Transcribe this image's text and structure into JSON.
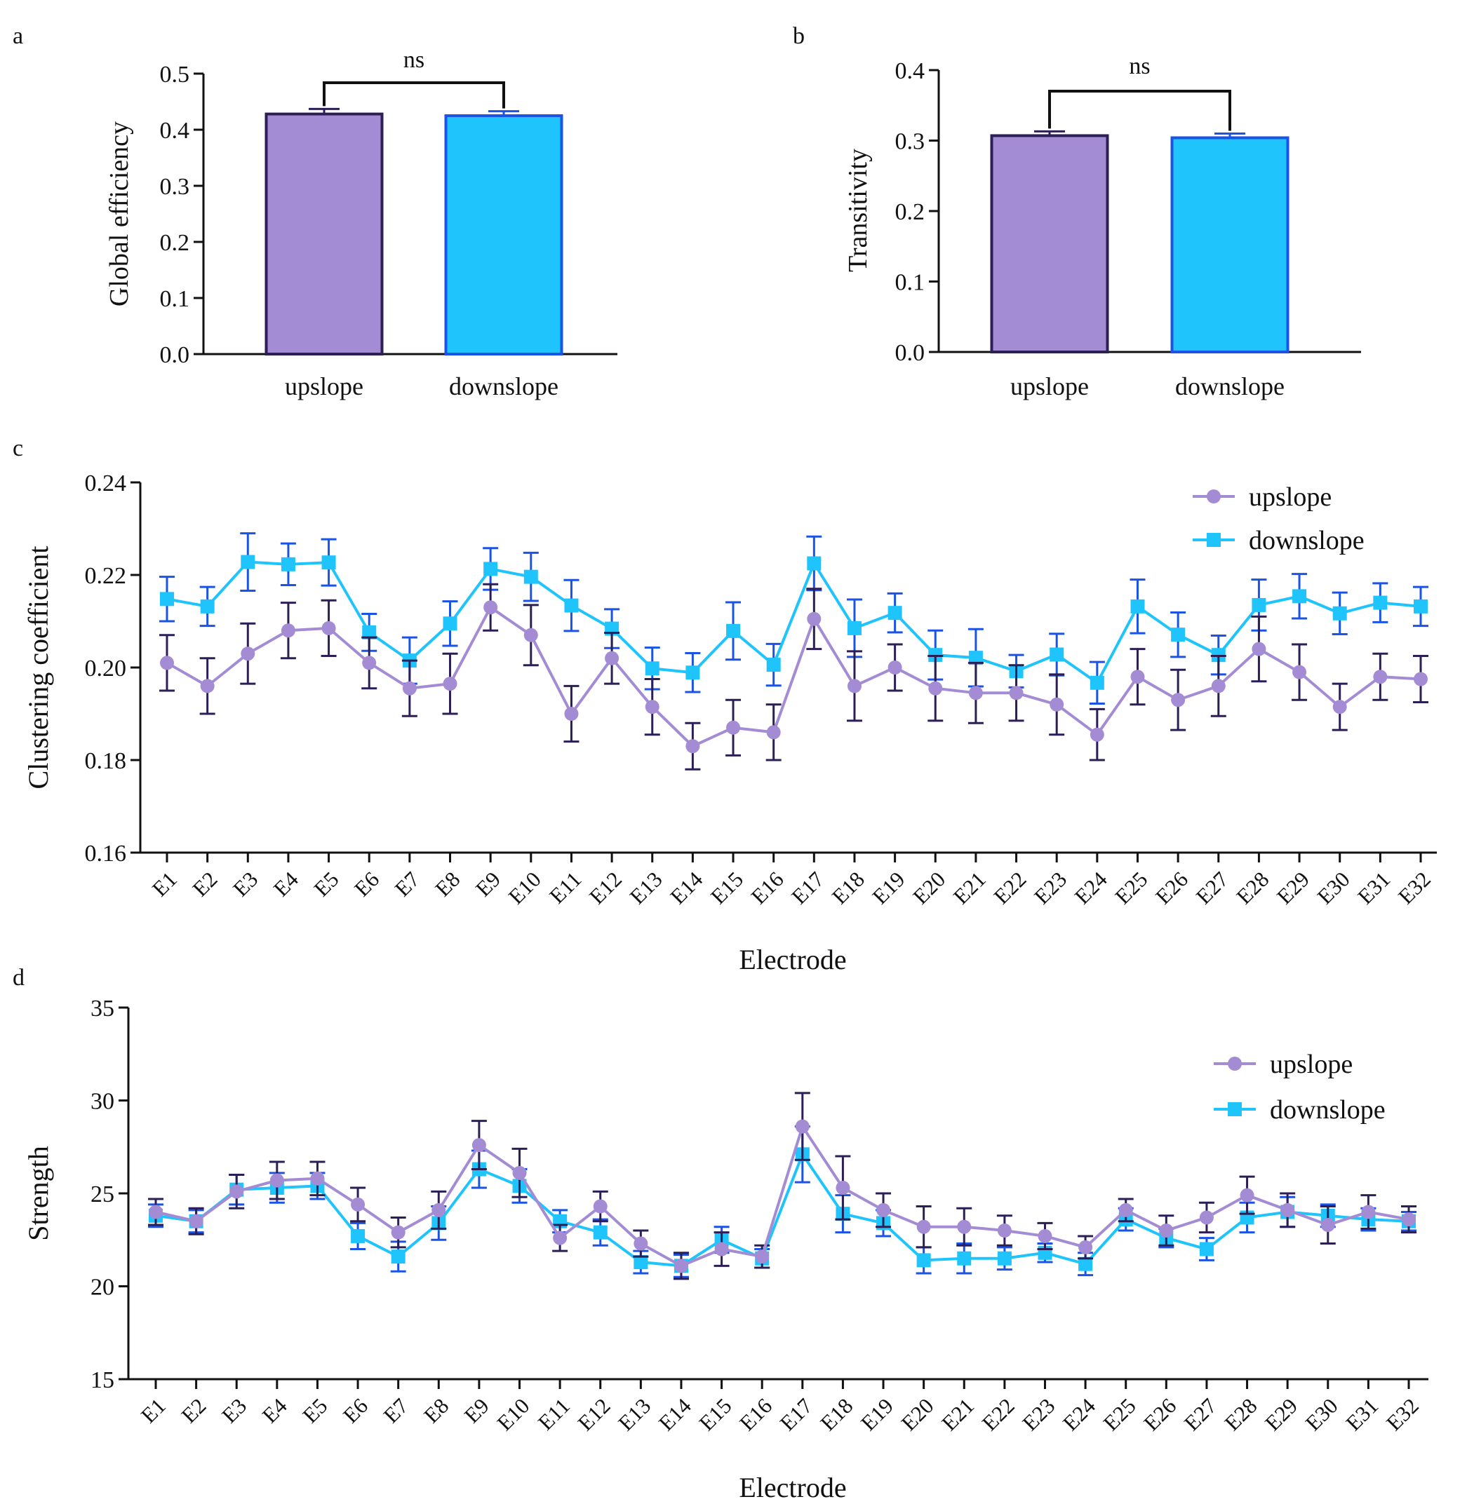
{
  "colors": {
    "upslope_fill": "#a48cd4",
    "upslope_edge": "#2b1f55",
    "downslope_fill": "#1fc4fc",
    "downslope_edge": "#1a53e6",
    "upslope_err": "#2b1f55",
    "downslope_err": "#1a53e6",
    "axis": "#111111"
  },
  "chart_data": [
    {
      "panel": "a",
      "type": "bar",
      "title": "",
      "xlabel": "",
      "ylabel": "Global efficiency",
      "categories": [
        "upslope",
        "downslope"
      ],
      "values": [
        0.428,
        0.425
      ],
      "errors": [
        0.009,
        0.008
      ],
      "ylim": [
        0,
        0.5
      ],
      "yticks": [
        "0.0",
        "0.1",
        "0.2",
        "0.3",
        "0.4",
        "0.5"
      ],
      "annotation": "ns",
      "grid": false
    },
    {
      "panel": "b",
      "type": "bar",
      "title": "",
      "xlabel": "",
      "ylabel": "Transitivity",
      "categories": [
        "upslope",
        "downslope"
      ],
      "values": [
        0.307,
        0.304
      ],
      "errors": [
        0.006,
        0.006
      ],
      "ylim": [
        0,
        0.4
      ],
      "yticks": [
        "0.0",
        "0.1",
        "0.2",
        "0.3",
        "0.4"
      ],
      "annotation": "ns",
      "grid": false
    },
    {
      "panel": "c",
      "type": "line",
      "title": "",
      "xlabel": "Electrode",
      "ylabel": "Clustering coefficient",
      "categories": [
        "E1",
        "E2",
        "E3",
        "E4",
        "E5",
        "E6",
        "E7",
        "E8",
        "E9",
        "E10",
        "E11",
        "E12",
        "E13",
        "E14",
        "E15",
        "E16",
        "E17",
        "E18",
        "E19",
        "E20",
        "E21",
        "E22",
        "E23",
        "E24",
        "E25",
        "E26",
        "E27",
        "E28",
        "E29",
        "E30",
        "E31",
        "E32"
      ],
      "ylim": [
        0.16,
        0.24
      ],
      "yticks": [
        "0.16",
        "0.18",
        "0.20",
        "0.22",
        "0.24"
      ],
      "legend_position": "top-right",
      "grid": false,
      "series": [
        {
          "name": "upslope",
          "marker": "circle",
          "values": [
            0.201,
            0.196,
            0.203,
            0.208,
            0.2085,
            0.201,
            0.1955,
            0.1965,
            0.213,
            0.207,
            0.19,
            0.202,
            0.1915,
            0.183,
            0.187,
            0.186,
            0.2105,
            0.196,
            0.2,
            0.1955,
            0.1945,
            0.1945,
            0.192,
            0.1855,
            0.198,
            0.193,
            0.196,
            0.204,
            0.199,
            0.1915,
            0.198,
            0.1975
          ],
          "errors": [
            0.006,
            0.006,
            0.0065,
            0.006,
            0.006,
            0.0055,
            0.006,
            0.0065,
            0.005,
            0.0065,
            0.006,
            0.0055,
            0.006,
            0.005,
            0.006,
            0.006,
            0.0065,
            0.0075,
            0.005,
            0.007,
            0.0065,
            0.006,
            0.0065,
            0.0055,
            0.006,
            0.0065,
            0.0065,
            0.007,
            0.006,
            0.005,
            0.005,
            0.005
          ]
        },
        {
          "name": "downslope",
          "marker": "square",
          "values": [
            0.2148,
            0.2132,
            0.2228,
            0.2223,
            0.2227,
            0.2076,
            0.2015,
            0.2095,
            0.2213,
            0.2196,
            0.2134,
            0.2084,
            0.1998,
            0.1989,
            0.2079,
            0.2006,
            0.2225,
            0.2085,
            0.2118,
            0.2027,
            0.2021,
            0.1992,
            0.2028,
            0.1967,
            0.2132,
            0.2071,
            0.2027,
            0.2135,
            0.2154,
            0.2117,
            0.214,
            0.2132
          ],
          "errors": [
            0.0048,
            0.0042,
            0.0062,
            0.0045,
            0.005,
            0.004,
            0.005,
            0.0048,
            0.0045,
            0.0052,
            0.0055,
            0.0042,
            0.0045,
            0.0042,
            0.0062,
            0.0045,
            0.0058,
            0.0062,
            0.0042,
            0.0053,
            0.0062,
            0.0035,
            0.0045,
            0.0045,
            0.0058,
            0.0048,
            0.0042,
            0.0055,
            0.0048,
            0.0045,
            0.0042,
            0.0042
          ]
        }
      ]
    },
    {
      "panel": "d",
      "type": "line",
      "title": "",
      "xlabel": "Electrode",
      "ylabel": "Strength",
      "categories": [
        "E1",
        "E2",
        "E3",
        "E4",
        "E5",
        "E6",
        "E7",
        "E8",
        "E9",
        "E10",
        "E11",
        "E12",
        "E13",
        "E14",
        "E15",
        "E16",
        "E17",
        "E18",
        "E19",
        "E20",
        "E21",
        "E22",
        "E23",
        "E24",
        "E25",
        "E26",
        "E27",
        "E28",
        "E29",
        "E30",
        "E31",
        "E32"
      ],
      "ylim": [
        15,
        35
      ],
      "yticks": [
        "15",
        "20",
        "25",
        "30",
        "35"
      ],
      "legend_position": "top-right",
      "grid": false,
      "series": [
        {
          "name": "upslope",
          "marker": "circle",
          "values": [
            24.0,
            23.5,
            25.1,
            25.7,
            25.8,
            24.4,
            22.9,
            24.1,
            27.6,
            26.1,
            22.6,
            24.3,
            22.3,
            21.1,
            22.0,
            21.6,
            28.6,
            25.3,
            24.1,
            23.2,
            23.2,
            23.0,
            22.7,
            22.1,
            24.1,
            23.0,
            23.7,
            24.9,
            24.1,
            23.3,
            24.0,
            23.6
          ],
          "errors": [
            0.7,
            0.7,
            0.9,
            1.0,
            0.9,
            0.9,
            0.8,
            1.0,
            1.3,
            1.3,
            0.7,
            0.8,
            0.7,
            0.7,
            0.9,
            0.6,
            1.8,
            1.7,
            0.9,
            1.1,
            1.0,
            0.8,
            0.7,
            0.6,
            0.6,
            0.8,
            0.8,
            1.0,
            0.9,
            1.0,
            0.9,
            0.7
          ]
        },
        {
          "name": "downslope",
          "marker": "square",
          "values": [
            23.8,
            23.5,
            25.2,
            25.3,
            25.4,
            22.7,
            21.6,
            23.4,
            26.3,
            25.4,
            23.5,
            22.9,
            21.3,
            21.1,
            22.5,
            21.5,
            27.1,
            23.9,
            23.4,
            21.4,
            21.5,
            21.5,
            21.8,
            21.2,
            23.6,
            22.6,
            22.0,
            23.7,
            24.0,
            23.8,
            23.6,
            23.5
          ],
          "errors": [
            0.6,
            0.6,
            0.8,
            0.8,
            0.7,
            0.7,
            0.8,
            0.9,
            1.0,
            0.9,
            0.6,
            0.7,
            0.6,
            0.6,
            0.7,
            0.5,
            1.5,
            1.0,
            0.7,
            0.7,
            0.8,
            0.6,
            0.5,
            0.6,
            0.6,
            0.5,
            0.6,
            0.8,
            0.8,
            0.6,
            0.6,
            0.5
          ]
        }
      ]
    }
  ]
}
